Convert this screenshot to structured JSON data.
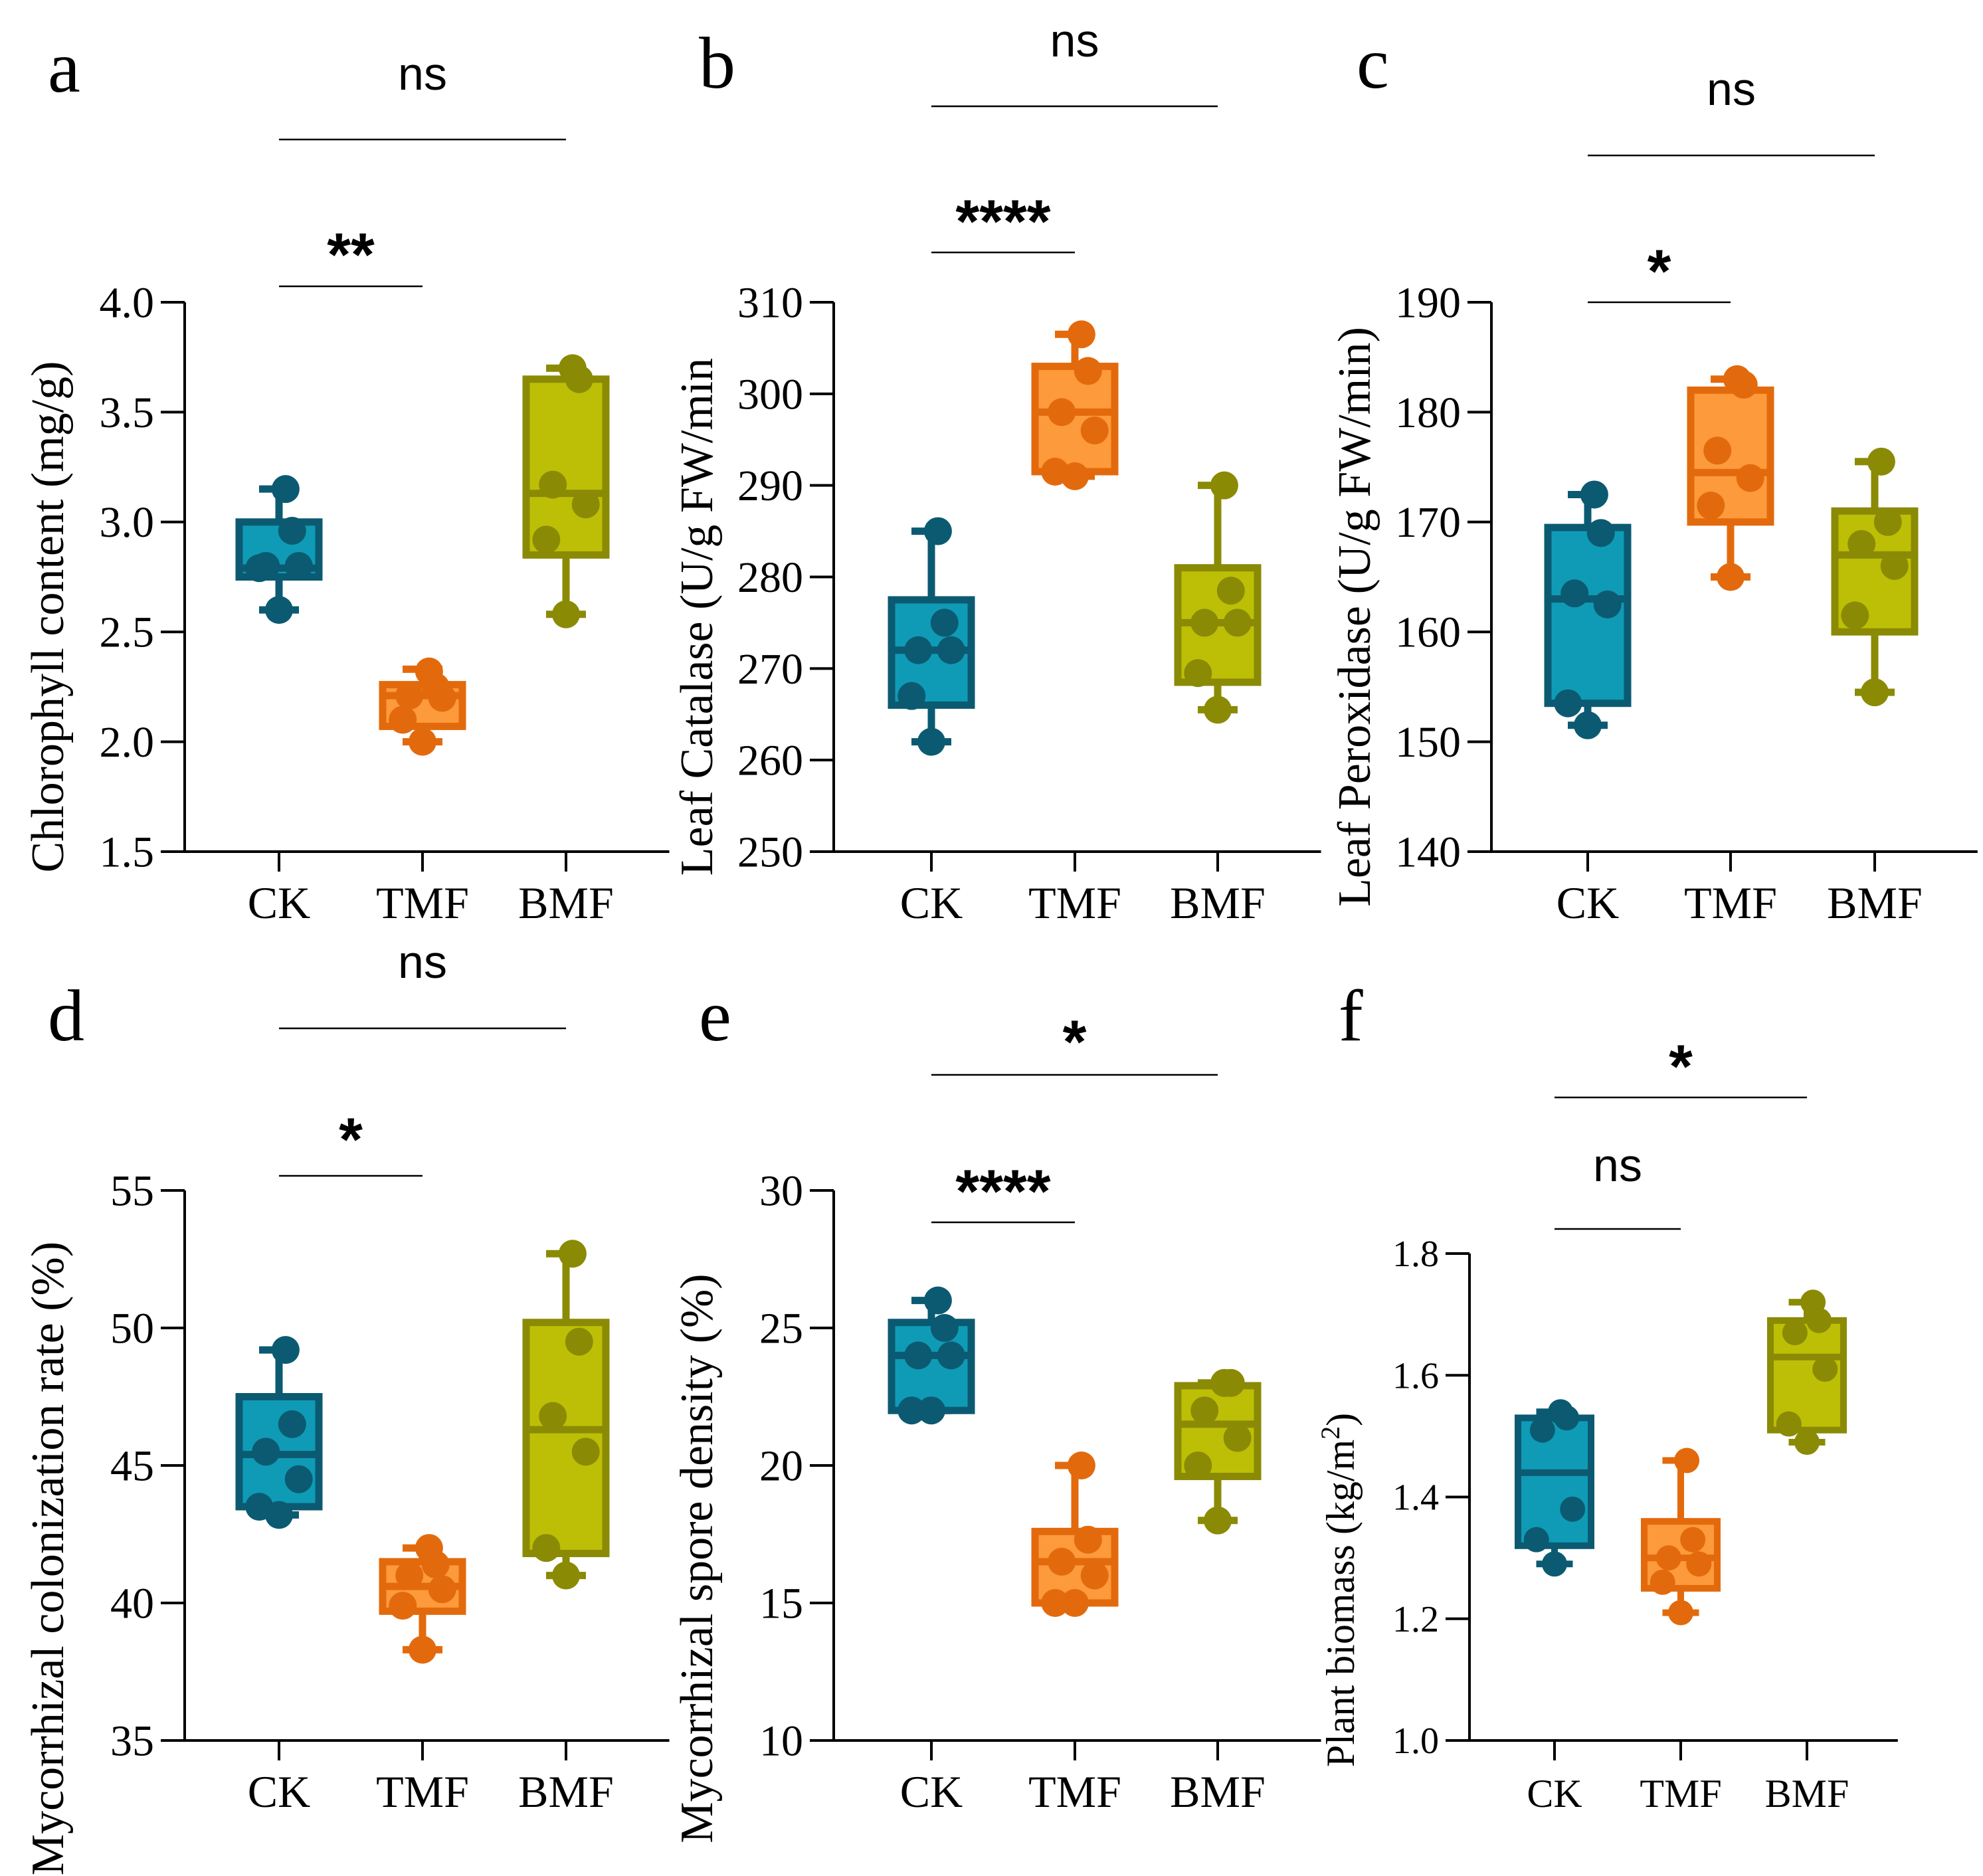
{
  "colors": {
    "CK": {
      "fill": "#0f9bb5",
      "stroke": "#0b5a72"
    },
    "TMF": {
      "fill": "#fc9a3c",
      "stroke": "#e36a0c"
    },
    "BMF": {
      "fill": "#bdbf06",
      "stroke": "#8a8a05"
    }
  },
  "chart_data": [
    {
      "type": "box",
      "panel": "a",
      "ylabel": "Chlorophyll content (mg/g)",
      "ylim": [
        1.5,
        4.0
      ],
      "yticks": [
        "1.5",
        "2.0",
        "2.5",
        "3.0",
        "3.5",
        "4.0"
      ],
      "categories": [
        "CK",
        "TMF",
        "BMF"
      ],
      "series": [
        {
          "name": "CK",
          "min": 2.6,
          "q1": 2.75,
          "median": 2.79,
          "q3": 3.0,
          "max": 3.15,
          "points": [
            2.6,
            2.79,
            2.8,
            2.8,
            2.96,
            3.15
          ]
        },
        {
          "name": "TMF",
          "min": 2.0,
          "q1": 2.07,
          "median": 2.21,
          "q3": 2.26,
          "max": 2.33,
          "points": [
            2.0,
            2.1,
            2.2,
            2.21,
            2.25,
            2.32
          ]
        },
        {
          "name": "BMF",
          "min": 2.58,
          "q1": 2.85,
          "median": 3.13,
          "q3": 3.65,
          "max": 3.7,
          "points": [
            2.58,
            2.92,
            3.08,
            3.17,
            3.65,
            3.7
          ]
        }
      ],
      "comparisons": [
        {
          "label": "**",
          "stars": true,
          "from": "CK",
          "to": "TMF"
        },
        {
          "label": "ns",
          "stars": false,
          "from": "CK",
          "to": "BMF"
        }
      ]
    },
    {
      "type": "box",
      "panel": "b",
      "ylabel": "Leaf Catalase (U/g FW/min",
      "ylim": [
        250,
        310
      ],
      "yticks": [
        "250",
        "260",
        "270",
        "280",
        "290",
        "300",
        "310"
      ],
      "categories": [
        "CK",
        "TMF",
        "BMF"
      ],
      "series": [
        {
          "name": "CK",
          "min": 262,
          "q1": 266,
          "median": 272,
          "q3": 277.5,
          "max": 285,
          "points": [
            262,
            267,
            272,
            272,
            275,
            285
          ]
        },
        {
          "name": "TMF",
          "min": 291,
          "q1": 291.5,
          "median": 298,
          "q3": 303,
          "max": 306.5,
          "points": [
            291,
            291.5,
            296,
            298,
            302.5,
            306.5
          ]
        },
        {
          "name": "BMF",
          "min": 265.5,
          "q1": 268.5,
          "median": 275,
          "q3": 281,
          "max": 290,
          "points": [
            265.5,
            269.5,
            275,
            275,
            278.5,
            290
          ]
        }
      ],
      "comparisons": [
        {
          "label": "****",
          "stars": true,
          "from": "CK",
          "to": "TMF"
        },
        {
          "label": "ns",
          "stars": false,
          "from": "CK",
          "to": "BMF"
        }
      ]
    },
    {
      "type": "box",
      "panel": "c",
      "ylabel": "Leaf Peroxidase (U/g FW/min)",
      "ylim": [
        140,
        190
      ],
      "yticks": [
        "140",
        "150",
        "160",
        "170",
        "180",
        "190"
      ],
      "categories": [
        "CK",
        "TMF",
        "BMF"
      ],
      "series": [
        {
          "name": "CK",
          "min": 151.5,
          "q1": 153.5,
          "median": 163,
          "q3": 169.5,
          "max": 172.5,
          "points": [
            151.5,
            153.5,
            162.5,
            163.5,
            169,
            172.5
          ]
        },
        {
          "name": "TMF",
          "min": 165,
          "q1": 170,
          "median": 174.5,
          "q3": 182,
          "max": 183,
          "points": [
            165,
            171.5,
            174,
            176.5,
            182.5,
            183
          ]
        },
        {
          "name": "BMF",
          "min": 154.5,
          "q1": 160,
          "median": 167,
          "q3": 171,
          "max": 175.5,
          "points": [
            154.5,
            161.5,
            166,
            168,
            170,
            175.5
          ]
        }
      ],
      "comparisons": [
        {
          "label": "*",
          "stars": true,
          "from": "CK",
          "to": "TMF"
        },
        {
          "label": "ns",
          "stars": false,
          "from": "CK",
          "to": "BMF"
        }
      ]
    },
    {
      "type": "box",
      "panel": "d",
      "ylabel": "Mycorrhizal colonization rate (%)",
      "ylim": [
        35,
        55
      ],
      "yticks": [
        "35",
        "40",
        "45",
        "50",
        "55"
      ],
      "categories": [
        "CK",
        "TMF",
        "BMF"
      ],
      "series": [
        {
          "name": "CK",
          "min": 43.2,
          "q1": 43.5,
          "median": 45.4,
          "q3": 47.5,
          "max": 49.2,
          "points": [
            43.2,
            43.5,
            44.5,
            45.5,
            46.5,
            49.2
          ]
        },
        {
          "name": "TMF",
          "min": 38.3,
          "q1": 39.7,
          "median": 40.6,
          "q3": 41.5,
          "max": 42,
          "points": [
            38.3,
            39.9,
            40.5,
            41,
            41.4,
            42
          ]
        },
        {
          "name": "BMF",
          "min": 41,
          "q1": 41.8,
          "median": 46.3,
          "q3": 50.2,
          "max": 52.7,
          "points": [
            41,
            42,
            45.5,
            46.8,
            49.5,
            52.7
          ]
        }
      ],
      "comparisons": [
        {
          "label": "*",
          "stars": true,
          "from": "CK",
          "to": "TMF"
        },
        {
          "label": "ns",
          "stars": false,
          "from": "CK",
          "to": "BMF"
        }
      ]
    },
    {
      "type": "box",
      "panel": "e",
      "ylabel": "Mycorrhizal spore density (%)",
      "ylim": [
        10,
        30
      ],
      "yticks": [
        "10",
        "15",
        "20",
        "25",
        "30"
      ],
      "categories": [
        "CK",
        "TMF",
        "BMF"
      ],
      "series": [
        {
          "name": "CK",
          "min": 22,
          "q1": 22,
          "median": 24,
          "q3": 25.2,
          "max": 26,
          "points": [
            22,
            22,
            24,
            24,
            25,
            26
          ]
        },
        {
          "name": "TMF",
          "min": 15,
          "q1": 15,
          "median": 16.5,
          "q3": 17.6,
          "max": 20,
          "points": [
            15,
            15,
            16,
            16.5,
            17.3,
            20
          ]
        },
        {
          "name": "BMF",
          "min": 18,
          "q1": 19.6,
          "median": 21.5,
          "q3": 22.9,
          "max": 23,
          "points": [
            18,
            20,
            21,
            22,
            23,
            23
          ]
        }
      ],
      "comparisons": [
        {
          "label": "****",
          "stars": true,
          "from": "CK",
          "to": "TMF"
        },
        {
          "label": "*",
          "stars": true,
          "from": "CK",
          "to": "BMF"
        }
      ]
    },
    {
      "type": "box",
      "panel": "f",
      "ylabel": "Plant biomass (kg/m",
      "ylabel_superscript": "2",
      "ylabel_suffix": ")",
      "ylim": [
        1.0,
        1.8
      ],
      "yticks": [
        "1.0",
        "1.2",
        "1.4",
        "1.6",
        "1.8"
      ],
      "categories": [
        "CK",
        "TMF",
        "BMF"
      ],
      "series": [
        {
          "name": "CK",
          "min": 1.29,
          "q1": 1.32,
          "median": 1.44,
          "q3": 1.53,
          "max": 1.54,
          "points": [
            1.29,
            1.33,
            1.38,
            1.51,
            1.53,
            1.54
          ]
        },
        {
          "name": "TMF",
          "min": 1.21,
          "q1": 1.25,
          "median": 1.3,
          "q3": 1.36,
          "max": 1.46,
          "points": [
            1.21,
            1.26,
            1.29,
            1.3,
            1.33,
            1.46
          ]
        },
        {
          "name": "BMF",
          "min": 1.49,
          "q1": 1.51,
          "median": 1.63,
          "q3": 1.69,
          "max": 1.72,
          "points": [
            1.49,
            1.52,
            1.61,
            1.67,
            1.69,
            1.72
          ]
        }
      ],
      "comparisons": [
        {
          "label": "ns",
          "stars": false,
          "from": "CK",
          "to": "TMF"
        },
        {
          "label": "*",
          "stars": true,
          "from": "CK",
          "to": "BMF"
        }
      ]
    }
  ]
}
